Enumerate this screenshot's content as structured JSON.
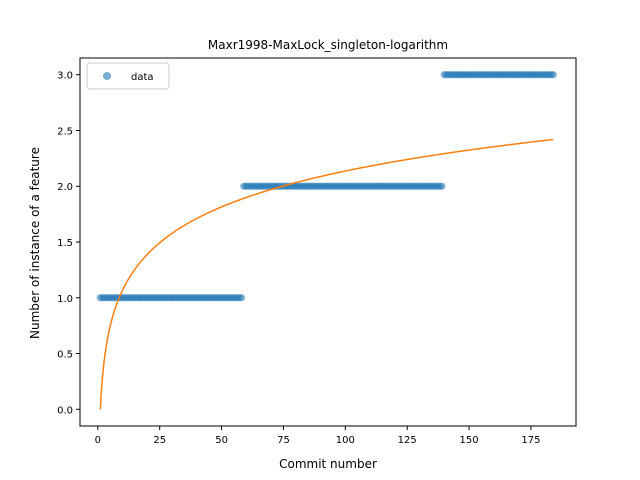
{
  "chart_data": {
    "type": "scatter",
    "title": "Maxr1998-MaxLock_singleton-logarithm",
    "xlabel": "Commit number",
    "ylabel": "Number of instance of a feature",
    "xlim": [
      -7.2,
      193.2
    ],
    "ylim": [
      -0.15,
      3.15
    ],
    "xticks": [
      0,
      25,
      50,
      75,
      100,
      125,
      150,
      175
    ],
    "yticks": [
      0.0,
      0.5,
      1.0,
      1.5,
      2.0,
      2.5,
      3.0
    ],
    "ytick_labels": [
      "0.0",
      "0.5",
      "1.0",
      "1.5",
      "2.0",
      "2.5",
      "3.0"
    ],
    "legend": {
      "position": "upper-left",
      "entries": [
        "data"
      ]
    },
    "colors": {
      "data": "#1f77b4",
      "fit": "#ff7f0e"
    },
    "series": [
      {
        "name": "data",
        "kind": "points",
        "segments": [
          {
            "x_from": 1,
            "x_to": 58,
            "y": 1
          },
          {
            "x_from": 59,
            "x_to": 139,
            "y": 2
          },
          {
            "x_from": 140,
            "x_to": 184,
            "y": 3
          }
        ]
      },
      {
        "kind": "line",
        "model": "y = a * ln(x)",
        "a": 0.4639,
        "x_range": [
          1,
          184
        ]
      }
    ]
  }
}
